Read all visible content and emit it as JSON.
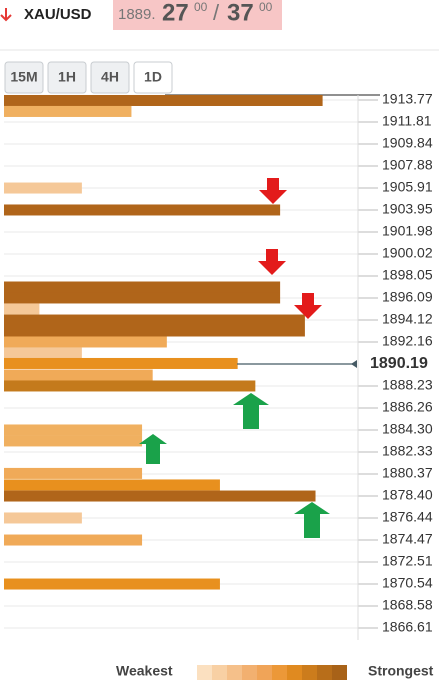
{
  "header": {
    "symbol": "XAU/USD",
    "bid_big": "1889.",
    "bid_pips": "27",
    "bid_frac": "00",
    "separator": "/",
    "ask_pips": "37",
    "ask_frac": "00"
  },
  "tabs": [
    "15M",
    "1H",
    "4H",
    "1D"
  ],
  "chart_data": {
    "type": "bar",
    "orientation": "horizontal",
    "xlim": [
      0,
      10
    ],
    "ylim": [
      1865.54,
      1914.22
    ],
    "yticks": [
      1913.77,
      1911.81,
      1909.84,
      1907.88,
      1905.91,
      1903.95,
      1901.98,
      1900.02,
      1898.05,
      1896.09,
      1894.12,
      1892.16,
      1888.23,
      1886.26,
      {
        "value": 1884.3,
        "label": "1884.30"
      },
      1882.33,
      1880.37,
      {
        "value": 1878.4,
        "label": "1878.40"
      },
      1876.44,
      1874.47,
      1872.51,
      1870.54,
      1868.58,
      1866.61
    ],
    "current": 1890.19,
    "grid": true,
    "bars": [
      {
        "price": 1913.73,
        "strength": 9.0,
        "color": "#b0651a"
      },
      {
        "price": 1912.75,
        "strength": 3.6,
        "color": "#f0b060"
      },
      {
        "price": 1905.91,
        "strength": 2.2,
        "color": "#f5c898"
      },
      {
        "price": 1903.95,
        "strength": 7.8,
        "color": "#b0651a"
      },
      {
        "price": 1897.07,
        "strength": 7.8,
        "color": "#b0651a"
      },
      {
        "price": 1896.09,
        "strength": 7.8,
        "color": "#b0651a"
      },
      {
        "price": 1895.11,
        "strength": 1.0,
        "color": "#f5c898"
      },
      {
        "price": 1894.12,
        "strength": 8.5,
        "color": "#b0651a"
      },
      {
        "price": 1893.14,
        "strength": 8.5,
        "color": "#b0651a"
      },
      {
        "price": 1892.16,
        "strength": 4.6,
        "color": "#f0aa58"
      },
      {
        "price": 1891.18,
        "strength": 2.2,
        "color": "#f5c898"
      },
      {
        "price": 1890.24,
        "strength": 6.6,
        "color": "#e8901e"
      },
      {
        "price": 1889.21,
        "strength": 4.2,
        "color": "#f0aa58"
      },
      {
        "price": 1888.23,
        "strength": 7.1,
        "color": "#c47a1c"
      },
      {
        "price": 1884.3,
        "strength": 3.9,
        "color": "#f0b060"
      },
      {
        "price": 1883.32,
        "strength": 3.9,
        "color": "#f0b060"
      },
      {
        "price": 1880.42,
        "strength": 3.9,
        "color": "#f0aa58"
      },
      {
        "price": 1879.39,
        "strength": 6.1,
        "color": "#e8901e"
      },
      {
        "price": 1878.4,
        "strength": 8.8,
        "color": "#b0651a"
      },
      {
        "price": 1876.44,
        "strength": 2.2,
        "color": "#f5c898"
      },
      {
        "price": 1874.47,
        "strength": 3.9,
        "color": "#f0aa58"
      },
      {
        "price": 1870.54,
        "strength": 6.1,
        "color": "#e8901e"
      }
    ]
  },
  "legend": {
    "weakest": "Weakest",
    "strongest": "Strongest",
    "colors": [
      "#fbe0c0",
      "#f8d0a4",
      "#f5c08a",
      "#f2b070",
      "#f0a458",
      "#ec9838",
      "#e08a20",
      "#cc7c1c",
      "#b86e1a",
      "#a86218"
    ]
  }
}
